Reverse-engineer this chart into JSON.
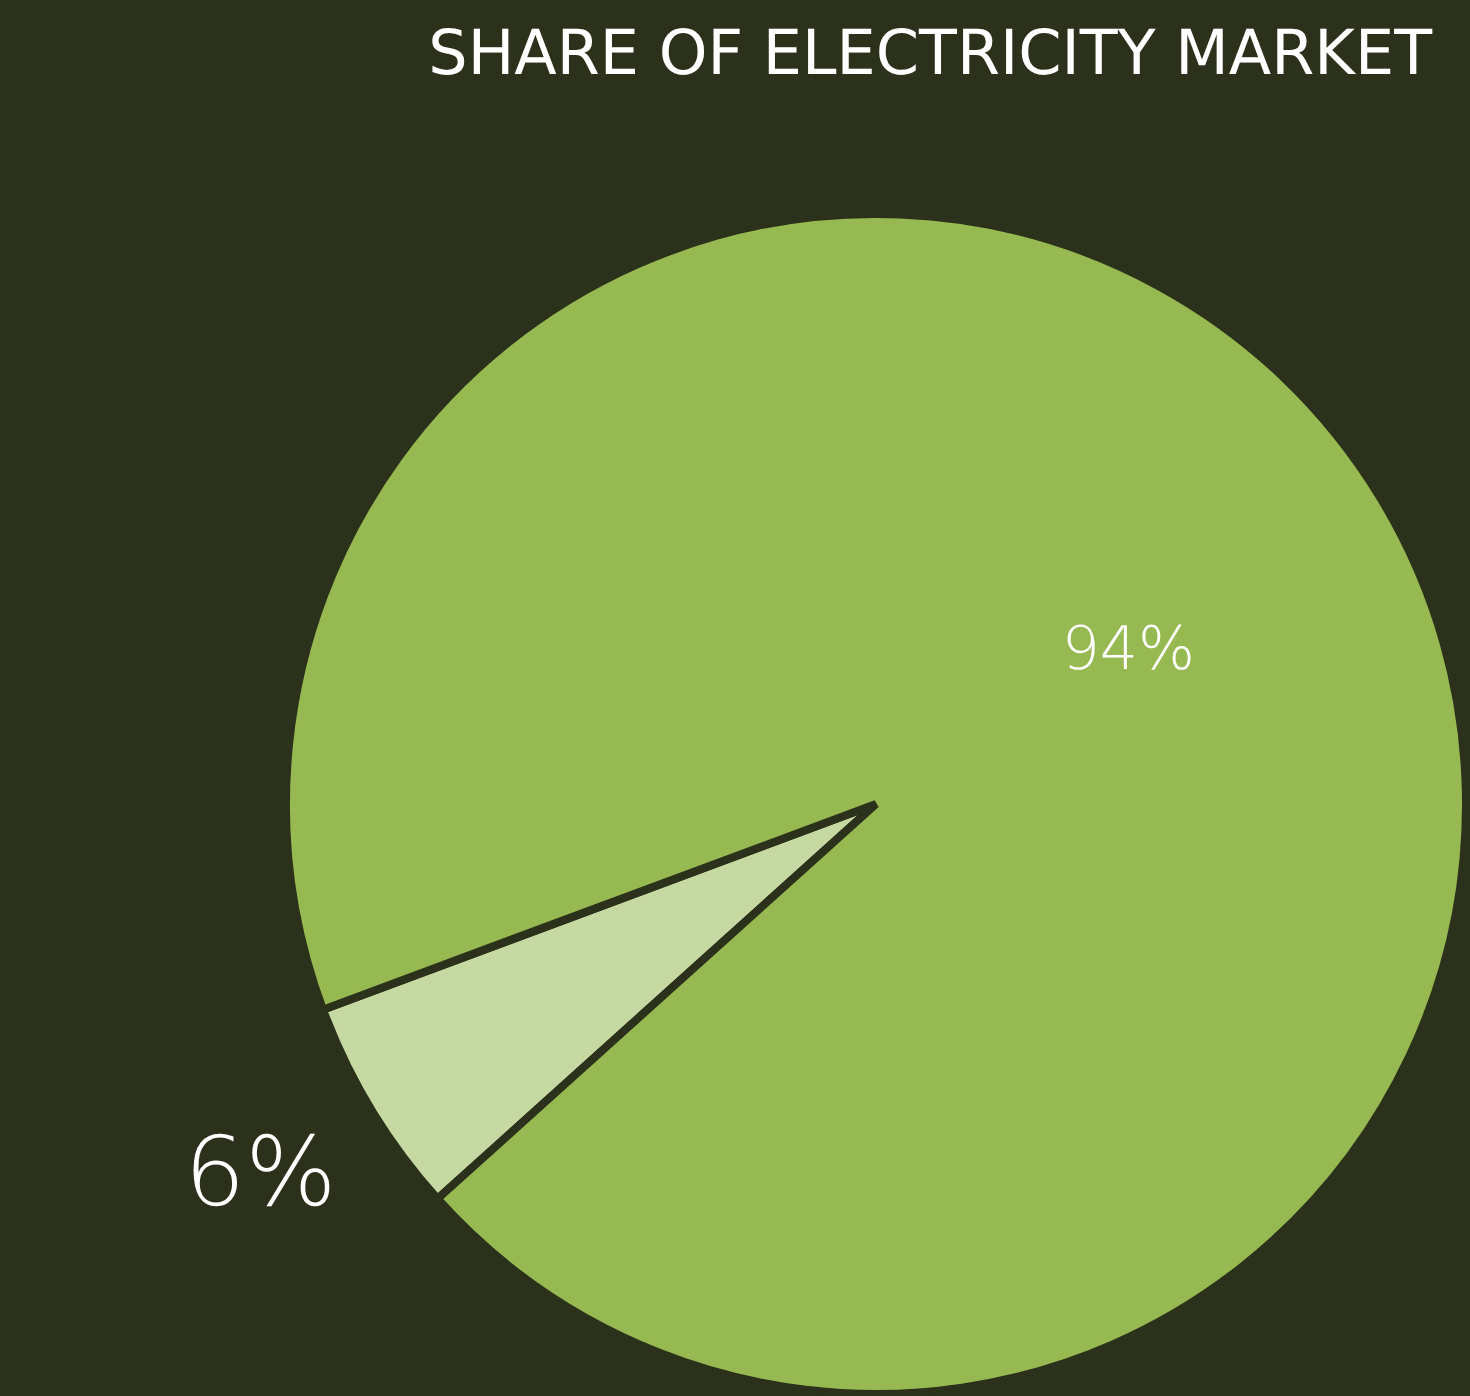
{
  "chart_data": {
    "type": "pie",
    "title": "SHARE OF ELECTRICITY MARKET",
    "categories": [
      null,
      null
    ],
    "values": [
      6,
      94
    ],
    "colors": [
      "#c6d9a3",
      "#97b951"
    ],
    "value_labels": [
      "6%",
      "94%"
    ]
  }
}
